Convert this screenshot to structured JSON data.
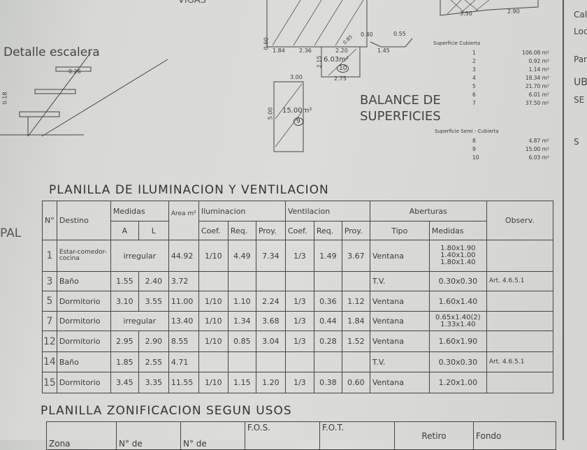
{
  "drawings": {
    "vigas_label": "VIGAS",
    "stair_title": "Detalle escalera",
    "stair_dims": [
      "0.26",
      "0.18"
    ],
    "plan_dims": [
      "0.60",
      "1.84",
      "2.36",
      "2.15",
      "2.20",
      "2.75",
      "0.40",
      "0.55",
      "1.45",
      "0.85",
      "3.50",
      "2.90",
      "3.00",
      "5.00"
    ],
    "area_10": "6.03m²",
    "area_10_id": "10",
    "area_9": "15.00m²",
    "area_9_id": "9",
    "balance_title": [
      "BALANCE DE",
      "SUPERFICIES"
    ]
  },
  "balance": {
    "cubierta_label": "Superficie Cubierta",
    "cubierta": [
      {
        "id": "1",
        "value": "106.08 m²"
      },
      {
        "id": "2",
        "value": "0.92 m²"
      },
      {
        "id": "3",
        "value": "1.14 m²"
      },
      {
        "id": "4",
        "value": "18.34 m²"
      },
      {
        "id": "5",
        "value": "21.70 m²"
      },
      {
        "id": "6",
        "value": "6.01 m²"
      },
      {
        "id": "7",
        "value": "37.50 m²"
      }
    ],
    "semi_label": "Superficie Semi - Cubierta",
    "semi": [
      {
        "id": "8",
        "value": "4.87 m²"
      },
      {
        "id": "9",
        "value": "15.00 m²"
      },
      {
        "id": "10",
        "value": "6.03 m²"
      }
    ]
  },
  "left_fragment": "PAL",
  "right_sheet": [
    "Cal",
    "Loc",
    "Par",
    "UB",
    "SE",
    "S"
  ],
  "iluminacion": {
    "title": "PLANILLA DE ILUMINACION Y VENTILACION",
    "headers": {
      "n": "N°",
      "destino": "Destino",
      "medidas": "Medidas",
      "a": "A",
      "l": "L",
      "area": "Area m²",
      "iluminacion": "Iluminacion",
      "ventilacion": "Ventilacion",
      "coef": "Coef.",
      "req": "Req.",
      "proy": "Proy.",
      "aberturas": "Aberturas",
      "tipo": "Tipo",
      "ab_medidas": "Medidas",
      "observ": "Observ."
    },
    "rows": [
      {
        "n": "1",
        "destino": "Estar-comedor-cocina",
        "a": "irregular",
        "l": "",
        "area": "44.92",
        "il_coef": "1/10",
        "il_req": "4.49",
        "il_proy": "7.34",
        "v_coef": "1/3",
        "v_req": "1.49",
        "v_proy": "3.67",
        "tipo": "Ventana",
        "medidas": "1.80x1.90 1.40x1.00 1.80x1.40",
        "obs": ""
      },
      {
        "n": "3",
        "destino": "Baño",
        "a": "1.55",
        "l": "2.40",
        "area": "3.72",
        "il_coef": "",
        "il_req": "",
        "il_proy": "",
        "v_coef": "",
        "v_req": "",
        "v_proy": "",
        "tipo": "T.V.",
        "medidas": "0.30x0.30",
        "obs": "Art. 4.6.5.1"
      },
      {
        "n": "5",
        "destino": "Dormitorio",
        "a": "3.10",
        "l": "3.55",
        "area": "11.00",
        "il_coef": "1/10",
        "il_req": "1.10",
        "il_proy": "2.24",
        "v_coef": "1/3",
        "v_req": "0.36",
        "v_proy": "1.12",
        "tipo": "Ventana",
        "medidas": "1.60x1.40",
        "obs": ""
      },
      {
        "n": "7",
        "destino": "Dormitorio",
        "a": "irregular",
        "l": "",
        "area": "13.40",
        "il_coef": "1/10",
        "il_req": "1.34",
        "il_proy": "3.68",
        "v_coef": "1/3",
        "v_req": "0.44",
        "v_proy": "1.84",
        "tipo": "Ventana",
        "medidas": "0.65x1.40(2) 1.33x1.40",
        "obs": ""
      },
      {
        "n": "12",
        "destino": "Dormitorio",
        "a": "2.95",
        "l": "2.90",
        "area": "8.55",
        "il_coef": "1/10",
        "il_req": "0.85",
        "il_proy": "3.04",
        "v_coef": "1/3",
        "v_req": "0.28",
        "v_proy": "1.52",
        "tipo": "Ventana",
        "medidas": "1.60x1.90",
        "obs": ""
      },
      {
        "n": "14",
        "destino": "Baño",
        "a": "1.85",
        "l": "2.55",
        "area": "4.71",
        "il_coef": "",
        "il_req": "",
        "il_proy": "",
        "v_coef": "",
        "v_req": "",
        "v_proy": "",
        "tipo": "T.V.",
        "medidas": "0.30x0.30",
        "obs": "Art. 4.6.5.1"
      },
      {
        "n": "15",
        "destino": "Dormitorio",
        "a": "3.45",
        "l": "3.35",
        "area": "11.55",
        "il_coef": "1/10",
        "il_req": "1.15",
        "il_proy": "1.20",
        "v_coef": "1/3",
        "v_req": "0.38",
        "v_proy": "0.60",
        "tipo": "Ventana",
        "medidas": "1.20x1.00",
        "obs": ""
      }
    ]
  },
  "zonificacion": {
    "title": "PLANILLA ZONIFICACION SEGUN USOS",
    "headers": [
      "Zona",
      "N° de",
      "N° de",
      "F.O.S.",
      "F.O.T.",
      "Retiro",
      "Fondo"
    ]
  }
}
